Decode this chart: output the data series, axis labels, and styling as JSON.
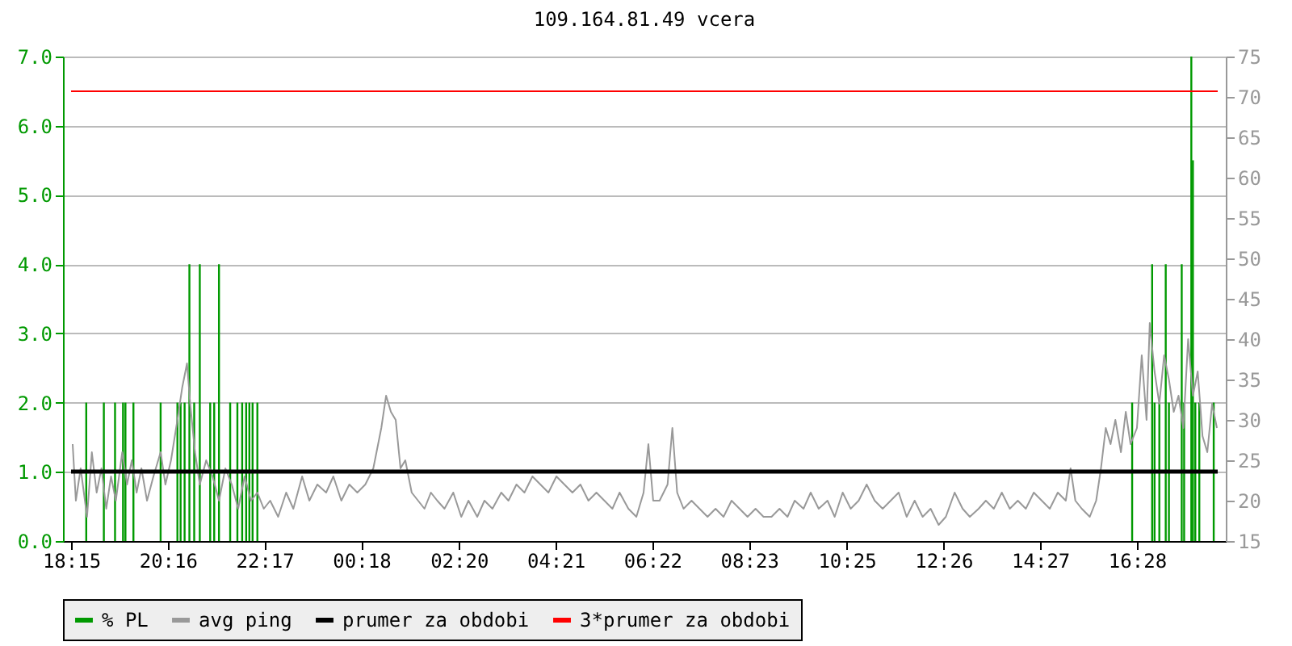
{
  "chart_data": {
    "type": "line",
    "title": "109.164.81.49 vcera",
    "xlim": [
      "--01-01T18:15",
      "--01-02T18:09"
    ],
    "xticks": [
      {
        "value": "--01-01T18:15",
        "label": "18:15"
      },
      {
        "value": "--01-01T20:16",
        "label": "20:16"
      },
      {
        "value": "--01-01T22:17",
        "label": "22:17"
      },
      {
        "value": "--01-02T00:18",
        "label": "00:18"
      },
      {
        "value": "--01-02T02:20",
        "label": "02:20"
      },
      {
        "value": "--01-02T04:21",
        "label": "04:21"
      },
      {
        "value": "--01-02T06:22",
        "label": "06:22"
      },
      {
        "value": "--01-02T08:23",
        "label": "08:23"
      },
      {
        "value": "--01-02T10:25",
        "label": "10:25"
      },
      {
        "value": "--01-02T12:26",
        "label": "12:26"
      },
      {
        "value": "--01-02T14:27",
        "label": "14:27"
      },
      {
        "value": "--01-02T16:28",
        "label": "16:28"
      }
    ],
    "ylim": [
      0,
      7
    ],
    "yticks": [
      {
        "value": 0,
        "label": "0.0"
      },
      {
        "value": 1,
        "label": "1.0"
      },
      {
        "value": 2,
        "label": "2.0"
      },
      {
        "value": 3,
        "label": "3.0"
      },
      {
        "value": 4,
        "label": "4.0"
      },
      {
        "value": 5,
        "label": "5.0"
      },
      {
        "value": 6,
        "label": "6.0"
      },
      {
        "value": 7,
        "label": "7.0"
      }
    ],
    "y2lim": [
      15,
      75
    ],
    "y2ticks": [
      15,
      20,
      25,
      30,
      35,
      40,
      45,
      50,
      55,
      60,
      65,
      70,
      75
    ],
    "grid": "y",
    "legend": "bottom",
    "series": [
      {
        "name": "% PL",
        "type": "bar",
        "color": "#009900",
        "x": [
          "--01-01T18:34",
          "--01-01T18:56",
          "--01-01T19:10",
          "--01-01T19:20",
          "--01-01T19:23",
          "--01-01T19:33",
          "--01-01T20:07",
          "--01-01T20:28",
          "--01-01T20:32",
          "--01-01T20:37",
          "--01-01T20:43",
          "--01-01T20:49",
          "--01-01T20:56",
          "--01-01T21:09",
          "--01-01T21:14",
          "--01-01T21:20",
          "--01-01T21:34",
          "--01-01T21:43",
          "--01-01T21:49",
          "--01-01T21:54",
          "--01-01T21:58",
          "--01-01T22:02",
          "--01-01T22:08",
          "--01-02T16:22",
          "--01-02T16:47",
          "--01-02T16:50",
          "--01-02T16:56",
          "--01-02T17:04",
          "--01-02T17:08",
          "--01-02T17:24",
          "--01-02T17:27",
          "--01-02T17:36",
          "--01-02T17:38",
          "--01-02T17:41",
          "--01-02T17:46",
          "--01-02T18:04"
        ],
        "values": [
          2,
          2,
          2,
          2,
          2,
          2,
          2,
          2,
          2,
          2,
          4,
          2,
          4,
          2,
          2,
          4,
          2,
          2,
          2,
          2,
          2,
          2,
          2,
          2,
          4,
          2,
          2,
          4,
          2,
          4,
          2,
          7,
          5.5,
          2,
          2,
          2
        ]
      },
      {
        "name": "avg ping",
        "axis": "y2",
        "color": "#999999",
        "x": [
          "--01-01T18:17",
          "--01-01T18:21",
          "--01-01T18:27",
          "--01-01T18:35",
          "--01-01T18:41",
          "--01-01T18:47",
          "--01-01T18:53",
          "--01-01T18:59",
          "--01-01T19:05",
          "--01-01T19:11",
          "--01-01T19:19",
          "--01-01T19:25",
          "--01-01T19:31",
          "--01-01T19:37",
          "--01-01T19:43",
          "--01-01T19:50",
          "--01-01T19:58",
          "--01-01T20:07",
          "--01-01T20:13",
          "--01-01T20:20",
          "--01-01T20:28",
          "--01-01T20:34",
          "--01-01T20:40",
          "--01-01T20:44",
          "--01-01T20:50",
          "--01-01T20:56",
          "--01-01T21:04",
          "--01-01T21:12",
          "--01-01T21:20",
          "--01-01T21:28",
          "--01-01T21:36",
          "--01-01T21:44",
          "--01-01T21:52",
          "--01-01T22:00",
          "--01-01T22:08",
          "--01-01T22:16",
          "--01-01T22:24",
          "--01-01T22:34",
          "--01-01T22:44",
          "--01-01T22:53",
          "--01-01T23:04",
          "--01-01T23:13",
          "--01-01T23:23",
          "--01-01T23:34",
          "--01-01T23:43",
          "--01-01T23:53",
          "--01-02T00:03",
          "--01-02T00:13",
          "--01-02T00:23",
          "--01-02T00:33",
          "--01-02T00:43",
          "--01-02T00:49",
          "--01-02T00:55",
          "--01-02T01:01",
          "--01-02T01:07",
          "--01-02T01:13",
          "--01-02T01:21",
          "--01-02T01:29",
          "--01-02T01:37",
          "--01-02T01:45",
          "--01-02T01:53",
          "--01-02T02:02",
          "--01-02T02:13",
          "--01-02T02:23",
          "--01-02T02:32",
          "--01-02T02:43",
          "--01-02T02:52",
          "--01-02T03:02",
          "--01-02T03:13",
          "--01-02T03:22",
          "--01-02T03:32",
          "--01-02T03:42",
          "--01-02T03:52",
          "--01-02T04:02",
          "--01-02T04:12",
          "--01-02T04:22",
          "--01-02T04:32",
          "--01-02T04:42",
          "--01-02T04:52",
          "--01-02T05:02",
          "--01-02T05:12",
          "--01-02T05:22",
          "--01-02T05:32",
          "--01-02T05:41",
          "--01-02T05:52",
          "--01-02T06:02",
          "--01-02T06:11",
          "--01-02T06:17",
          "--01-02T06:23",
          "--01-02T06:31",
          "--01-02T06:41",
          "--01-02T06:47",
          "--01-02T06:53",
          "--01-02T07:01",
          "--01-02T07:11",
          "--01-02T07:21",
          "--01-02T07:31",
          "--01-02T07:41",
          "--01-02T07:51",
          "--01-02T08:01",
          "--01-02T08:11",
          "--01-02T08:21",
          "--01-02T08:31",
          "--01-02T08:41",
          "--01-02T08:51",
          "--01-02T09:01",
          "--01-02T09:11",
          "--01-02T09:20",
          "--01-02T09:31",
          "--01-02T09:40",
          "--01-02T09:50",
          "--01-02T10:01",
          "--01-02T10:10",
          "--01-02T10:20",
          "--01-02T10:30",
          "--01-02T10:40",
          "--01-02T10:50",
          "--01-02T11:00",
          "--01-02T11:10",
          "--01-02T11:20",
          "--01-02T11:30",
          "--01-02T11:40",
          "--01-02T11:50",
          "--01-02T12:00",
          "--01-02T12:10",
          "--01-02T12:20",
          "--01-02T12:29",
          "--01-02T12:40",
          "--01-02T12:50",
          "--01-02T12:59",
          "--01-02T13:10",
          "--01-02T13:19",
          "--01-02T13:29",
          "--01-02T13:39",
          "--01-02T13:49",
          "--01-02T13:59",
          "--01-02T14:09",
          "--01-02T14:19",
          "--01-02T14:29",
          "--01-02T14:39",
          "--01-02T14:49",
          "--01-02T14:59",
          "--01-02T15:05",
          "--01-02T15:11",
          "--01-02T15:19",
          "--01-02T15:29",
          "--01-02T15:37",
          "--01-02T15:43",
          "--01-02T15:49",
          "--01-02T15:55",
          "--01-02T16:01",
          "--01-02T16:08",
          "--01-02T16:14",
          "--01-02T16:20",
          "--01-02T16:28",
          "--01-02T16:34",
          "--01-02T16:40",
          "--01-02T16:44",
          "--01-02T16:50",
          "--01-02T16:56",
          "--01-02T17:02",
          "--01-02T17:08",
          "--01-02T17:14",
          "--01-02T17:20",
          "--01-02T17:26",
          "--01-02T17:32",
          "--01-02T17:38",
          "--01-02T17:44",
          "--01-02T17:50",
          "--01-02T17:56",
          "--01-02T18:02",
          "--01-02T18:08"
        ],
        "values": [
          27,
          20,
          24,
          18,
          26,
          21,
          24,
          19,
          23,
          20,
          26,
          22,
          25,
          21,
          24,
          20,
          23,
          26,
          22,
          25,
          30,
          34,
          37,
          32,
          26,
          22,
          25,
          23,
          20,
          24,
          22,
          19,
          23,
          20,
          21,
          19,
          20,
          18,
          21,
          19,
          23,
          20,
          22,
          21,
          23,
          20,
          22,
          21,
          22,
          24,
          29,
          33,
          31,
          30,
          24,
          25,
          21,
          20,
          19,
          21,
          20,
          19,
          21,
          18,
          20,
          18,
          20,
          19,
          21,
          20,
          22,
          21,
          23,
          22,
          21,
          23,
          22,
          21,
          22,
          20,
          21,
          20,
          19,
          21,
          19,
          18,
          21,
          27,
          20,
          20,
          22,
          29,
          21,
          19,
          20,
          19,
          18,
          19,
          18,
          20,
          19,
          18,
          19,
          18,
          18,
          19,
          18,
          20,
          19,
          21,
          19,
          20,
          18,
          21,
          19,
          20,
          22,
          20,
          19,
          20,
          21,
          18,
          20,
          18,
          19,
          17,
          18,
          21,
          19,
          18,
          19,
          20,
          19,
          21,
          19,
          20,
          19,
          21,
          20,
          19,
          21,
          20,
          24,
          20,
          19,
          18,
          20,
          24,
          29,
          27,
          30,
          26,
          31,
          27,
          29,
          38,
          30,
          42,
          36,
          32,
          38,
          35,
          31,
          33,
          29,
          40,
          33,
          36,
          28,
          26,
          32,
          29
        ]
      },
      {
        "name": "prumer za obdobi",
        "axis": "y2",
        "color": "#000000",
        "x": [
          "--01-01T18:15",
          "--01-02T18:09"
        ],
        "values": [
          23.6,
          23.6
        ]
      },
      {
        "name": "3*prumer za obdobi",
        "axis": "y2",
        "color": "#ff0000",
        "x": [
          "--01-01T18:15",
          "--01-02T18:09"
        ],
        "values": [
          70.7,
          70.7
        ]
      }
    ]
  }
}
